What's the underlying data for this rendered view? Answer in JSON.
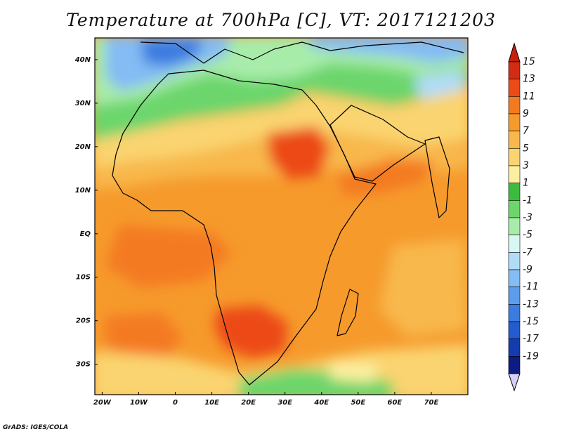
{
  "title": "Temperature at 700hPa [C], VT: 2017121203",
  "credit": "GrADS: IGES/COLA",
  "map": {
    "lat_labels": [
      {
        "lat": 40,
        "label": "40N"
      },
      {
        "lat": 30,
        "label": "30N"
      },
      {
        "lat": 20,
        "label": "20N"
      },
      {
        "lat": 10,
        "label": "10N"
      },
      {
        "lat": 0,
        "label": "EQ"
      },
      {
        "lat": -10,
        "label": "10S"
      },
      {
        "lat": -20,
        "label": "20S"
      },
      {
        "lat": -30,
        "label": "30S"
      }
    ],
    "lon_labels": [
      {
        "lon": -20,
        "label": "20W"
      },
      {
        "lon": -10,
        "label": "10W"
      },
      {
        "lon": 0,
        "label": "0"
      },
      {
        "lon": 10,
        "label": "10E"
      },
      {
        "lon": 20,
        "label": "20E"
      },
      {
        "lon": 30,
        "label": "30E"
      },
      {
        "lon": 40,
        "label": "40E"
      },
      {
        "lon": 50,
        "label": "50E"
      },
      {
        "lon": 60,
        "label": "60E"
      },
      {
        "lon": 70,
        "label": "70E"
      }
    ],
    "lon_range": [
      -22,
      80
    ],
    "lat_range": [
      -37,
      45
    ]
  },
  "colorbar": {
    "levels": [
      {
        "label": "15",
        "color": "#d42c14"
      },
      {
        "label": "13",
        "color": "#ec4a18"
      },
      {
        "label": "11",
        "color": "#f47a20"
      },
      {
        "label": "9",
        "color": "#f69a2c"
      },
      {
        "label": "7",
        "color": "#f8b84c"
      },
      {
        "label": "5",
        "color": "#fad470"
      },
      {
        "label": "3",
        "color": "#fcf0a0"
      },
      {
        "label": "1",
        "color": "#3cbc3c"
      },
      {
        "label": "-1",
        "color": "#6cd66c"
      },
      {
        "label": "-3",
        "color": "#a8ecaa"
      },
      {
        "label": "-5",
        "color": "#d8f6f4"
      },
      {
        "label": "-7",
        "color": "#b0dcf8"
      },
      {
        "label": "-9",
        "color": "#84bcf4"
      },
      {
        "label": "-11",
        "color": "#5c9cec"
      },
      {
        "label": "-13",
        "color": "#3a7ce0"
      },
      {
        "label": "-15",
        "color": "#225cd0"
      },
      {
        "label": "-17",
        "color": "#143cb0"
      },
      {
        "label": "-19",
        "color": "#0c1c80"
      }
    ],
    "top_arrow_color": "#c81e0e",
    "bottom_arrow_color": "#d8d0f8"
  }
}
